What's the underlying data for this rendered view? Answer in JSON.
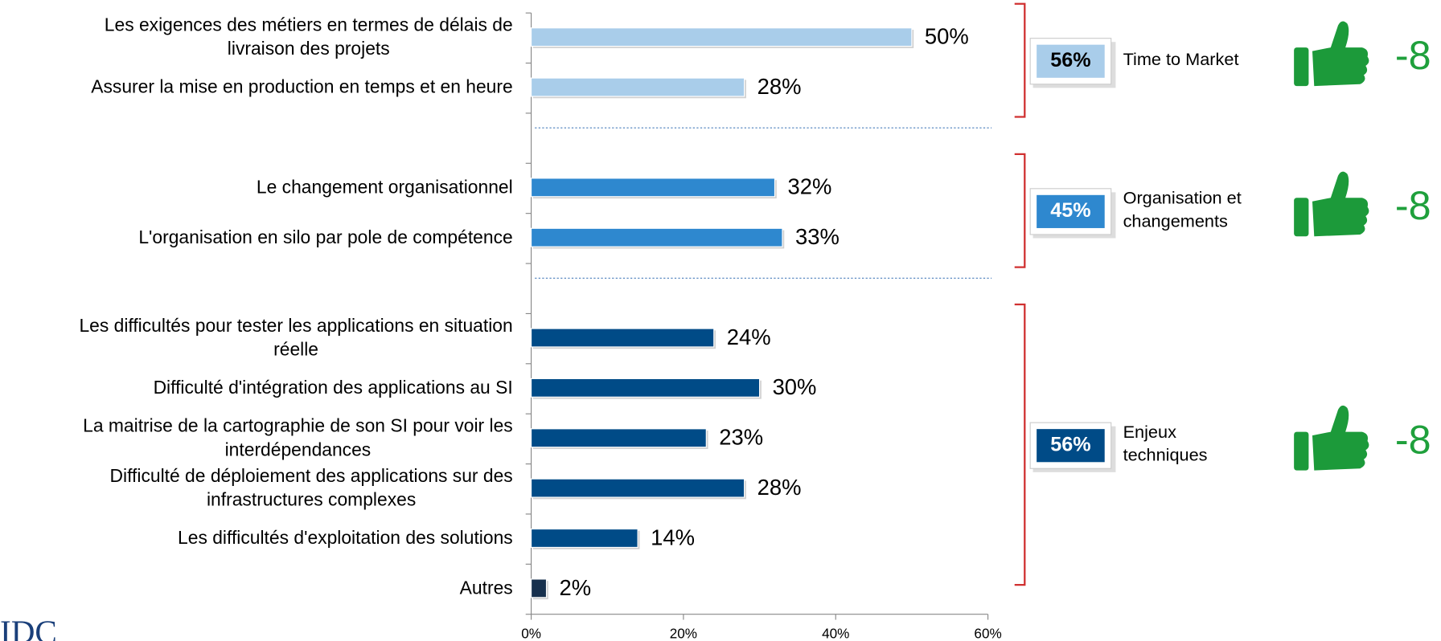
{
  "chart_data": {
    "type": "bar",
    "xlim": [
      0,
      60
    ],
    "xticks": [
      {
        "value": 0,
        "label": "0%"
      },
      {
        "value": 20,
        "label": "20%"
      },
      {
        "value": 40,
        "label": "40%"
      },
      {
        "value": 60,
        "label": "60%"
      }
    ],
    "groups": [
      {
        "label": [
          "Time to Market"
        ],
        "total": 56,
        "total_label": "56%",
        "color": "#a9cdea",
        "trend": "-8",
        "categories": [
          [
            "Les exigences des métiers en termes de délais de",
            "livraison des projets"
          ],
          [
            "Assurer la mise en production en temps et en heure"
          ]
        ],
        "values": [
          50,
          28
        ],
        "value_labels": [
          "50%",
          "28%"
        ],
        "colors": [
          "#a9cdea",
          "#a9cdea"
        ]
      },
      {
        "label": [
          "Organisation et",
          "changements"
        ],
        "total": 45,
        "total_label": "45%",
        "color": "#2e88cf",
        "trend": "-8",
        "categories": [
          [
            "Le changement organisationnel"
          ],
          [
            "L'organisation en silo par pole de compétence"
          ]
        ],
        "values": [
          32,
          33
        ],
        "value_labels": [
          "32%",
          "33%"
        ],
        "colors": [
          "#2e88cf",
          "#2e88cf"
        ]
      },
      {
        "label": [
          "Enjeux",
          "techniques"
        ],
        "total": 56,
        "total_label": "56%",
        "color": "#004b87",
        "trend": "-8",
        "categories": [
          [
            "Les difficultés pour tester les applications en situation",
            "réelle"
          ],
          [
            "Difficulté d'intégration des applications au SI"
          ],
          [
            "La maitrise de la cartographie de son SI pour voir les",
            "interdépendances"
          ],
          [
            "Difficulté de déploiement des applications sur des",
            "infrastructures complexes"
          ],
          [
            "Les difficultés d'exploitation des solutions"
          ],
          [
            "Autres"
          ]
        ],
        "values": [
          24,
          30,
          23,
          28,
          14,
          2
        ],
        "value_labels": [
          "24%",
          "30%",
          "23%",
          "28%",
          "14%",
          "2%"
        ],
        "colors": [
          "#004b87",
          "#004b87",
          "#004b87",
          "#004b87",
          "#004b87",
          "#17304d"
        ]
      }
    ],
    "logo": "IDC"
  }
}
